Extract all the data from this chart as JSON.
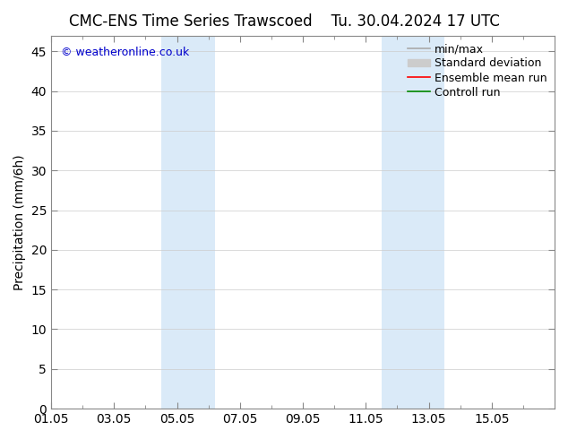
{
  "title_left": "CMC-ENS Time Series Trawscoed",
  "title_right": "Tu. 30.04.2024 17 UTC",
  "ylabel": "Precipitation (mm/6h)",
  "ylim": [
    0,
    47
  ],
  "yticks": [
    0,
    5,
    10,
    15,
    20,
    25,
    30,
    35,
    40,
    45
  ],
  "xtick_labels": [
    "01.05",
    "03.05",
    "05.05",
    "07.05",
    "09.05",
    "11.05",
    "13.05",
    "15.05"
  ],
  "xtick_positions": [
    0,
    2,
    4,
    6,
    8,
    10,
    12,
    14
  ],
  "x_minor_positions": [
    1,
    3,
    5,
    7,
    9,
    11,
    13,
    15
  ],
  "xlim": [
    0,
    16
  ],
  "shaded_bands": [
    {
      "x_start": 3.5,
      "x_end": 5.2,
      "color": "#daeaf8"
    },
    {
      "x_start": 10.5,
      "x_end": 12.5,
      "color": "#daeaf8"
    }
  ],
  "copyright_text": "© weatheronline.co.uk",
  "copyright_color": "#0000cc",
  "copyright_fontsize": 9,
  "legend_entries": [
    {
      "label": "min/max",
      "color": "#aaaaaa",
      "lw": 1.2,
      "type": "line"
    },
    {
      "label": "Standard deviation",
      "color": "#cccccc",
      "lw": 8,
      "type": "patch"
    },
    {
      "label": "Ensemble mean run",
      "color": "#ff0000",
      "lw": 1.2,
      "type": "line"
    },
    {
      "label": "Controll run",
      "color": "#008800",
      "lw": 1.2,
      "type": "line"
    }
  ],
  "background_color": "#ffffff",
  "plot_bg_color": "#ffffff",
  "title_fontsize": 12,
  "axis_fontsize": 10,
  "ylabel_fontsize": 10,
  "legend_fontsize": 9
}
